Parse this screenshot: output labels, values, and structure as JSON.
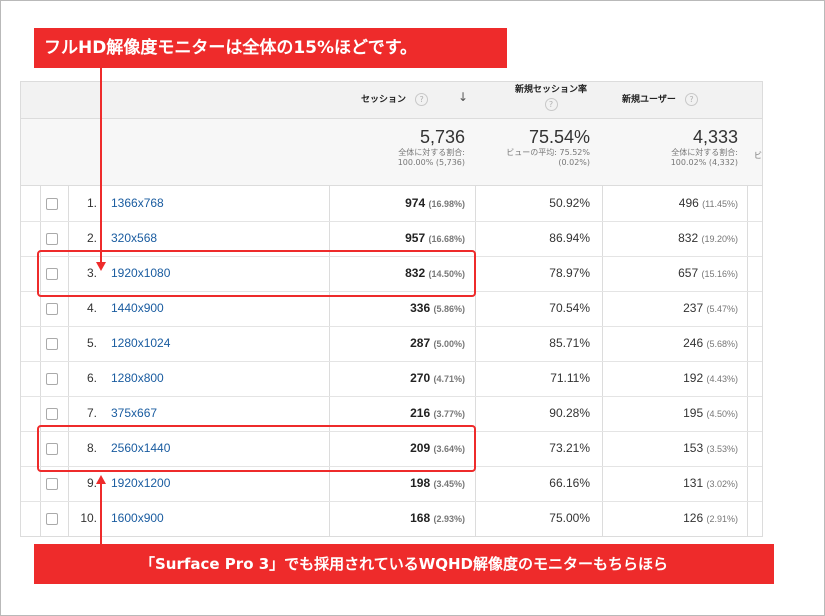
{
  "annotations": {
    "top": "フルHD解像度モニターは全体の15%ほどです。",
    "bottom": "「Surface Pro 3」でも採用されているWQHD解像度のモニターもちらほら"
  },
  "table": {
    "headers": {
      "sessions": "セッション",
      "new_session_rate": "新規セッション率",
      "new_users": "新規ユーザー",
      "help": "?",
      "sort_icon": "↓"
    },
    "totals": {
      "sessions": {
        "value": "5,736",
        "line1": "全体に対する割合:",
        "line2": "100.00% (5,736)"
      },
      "new_session_rate": {
        "value": "75.54%",
        "line1": "ビューの平均: 75.52%",
        "line2": "(0.02%)"
      },
      "new_users": {
        "value": "4,333",
        "line1": "全体に対する割合:",
        "line2": "100.02% (4,332)"
      },
      "cut_off": "ビ"
    },
    "rows": [
      {
        "num": "1.",
        "resolution": "1366x768",
        "sessions": "974",
        "sessions_pct": "(16.98%)",
        "rate": "50.92%",
        "users": "496",
        "users_pct": "(11.45%)"
      },
      {
        "num": "2.",
        "resolution": "320x568",
        "sessions": "957",
        "sessions_pct": "(16.68%)",
        "rate": "86.94%",
        "users": "832",
        "users_pct": "(19.20%)"
      },
      {
        "num": "3.",
        "resolution": "1920x1080",
        "sessions": "832",
        "sessions_pct": "(14.50%)",
        "rate": "78.97%",
        "users": "657",
        "users_pct": "(15.16%)"
      },
      {
        "num": "4.",
        "resolution": "1440x900",
        "sessions": "336",
        "sessions_pct": "(5.86%)",
        "rate": "70.54%",
        "users": "237",
        "users_pct": "(5.47%)"
      },
      {
        "num": "5.",
        "resolution": "1280x1024",
        "sessions": "287",
        "sessions_pct": "(5.00%)",
        "rate": "85.71%",
        "users": "246",
        "users_pct": "(5.68%)"
      },
      {
        "num": "6.",
        "resolution": "1280x800",
        "sessions": "270",
        "sessions_pct": "(4.71%)",
        "rate": "71.11%",
        "users": "192",
        "users_pct": "(4.43%)"
      },
      {
        "num": "7.",
        "resolution": "375x667",
        "sessions": "216",
        "sessions_pct": "(3.77%)",
        "rate": "90.28%",
        "users": "195",
        "users_pct": "(4.50%)"
      },
      {
        "num": "8.",
        "resolution": "2560x1440",
        "sessions": "209",
        "sessions_pct": "(3.64%)",
        "rate": "73.21%",
        "users": "153",
        "users_pct": "(3.53%)"
      },
      {
        "num": "9.",
        "resolution": "1920x1200",
        "sessions": "198",
        "sessions_pct": "(3.45%)",
        "rate": "66.16%",
        "users": "131",
        "users_pct": "(3.02%)"
      },
      {
        "num": "10.",
        "resolution": "1600x900",
        "sessions": "168",
        "sessions_pct": "(2.93%)",
        "rate": "75.00%",
        "users": "126",
        "users_pct": "(2.91%)"
      }
    ]
  },
  "colors": {
    "accent": "#ee2b2b",
    "link": "#1a5ca0"
  }
}
